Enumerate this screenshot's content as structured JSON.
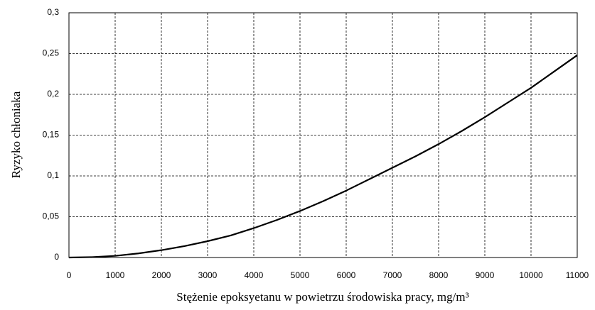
{
  "chart_data": {
    "type": "line",
    "x_label": "Stężenie epoksyetanu w powietrzu środowiska pracy, mg/m³",
    "y_label": "Ryzyko chłoniaka",
    "x": [
      0,
      500,
      1000,
      1500,
      2000,
      2500,
      3000,
      3500,
      4000,
      4500,
      5000,
      5500,
      6000,
      6500,
      7000,
      7500,
      8000,
      8500,
      9000,
      9500,
      10000,
      10500,
      11000
    ],
    "series": [
      {
        "color": "#000000",
        "values": [
          0,
          0.0005,
          0.002,
          0.005,
          0.009,
          0.014,
          0.02,
          0.027,
          0.036,
          0.046,
          0.057,
          0.069,
          0.082,
          0.096,
          0.11,
          0.124,
          0.139,
          0.155,
          0.172,
          0.19,
          0.208,
          0.228,
          0.248
        ]
      }
    ],
    "xlim": [
      0,
      11000
    ],
    "xticks": [
      0,
      1000,
      2000,
      3000,
      4000,
      5000,
      6000,
      7000,
      8000,
      9000,
      10000,
      11000
    ],
    "ylim": [
      0,
      0.3
    ],
    "yticks": [
      0,
      {
        "value": 0.05,
        "label": "0,05"
      },
      {
        "value": 0.1,
        "label": "0,1"
      },
      {
        "value": 0.15,
        "label": "0,15"
      },
      {
        "value": 0.2,
        "label": "0,2"
      },
      {
        "value": 0.25,
        "label": "0,25"
      },
      {
        "value": 0.3,
        "label": "0,3"
      }
    ],
    "grid": true
  }
}
